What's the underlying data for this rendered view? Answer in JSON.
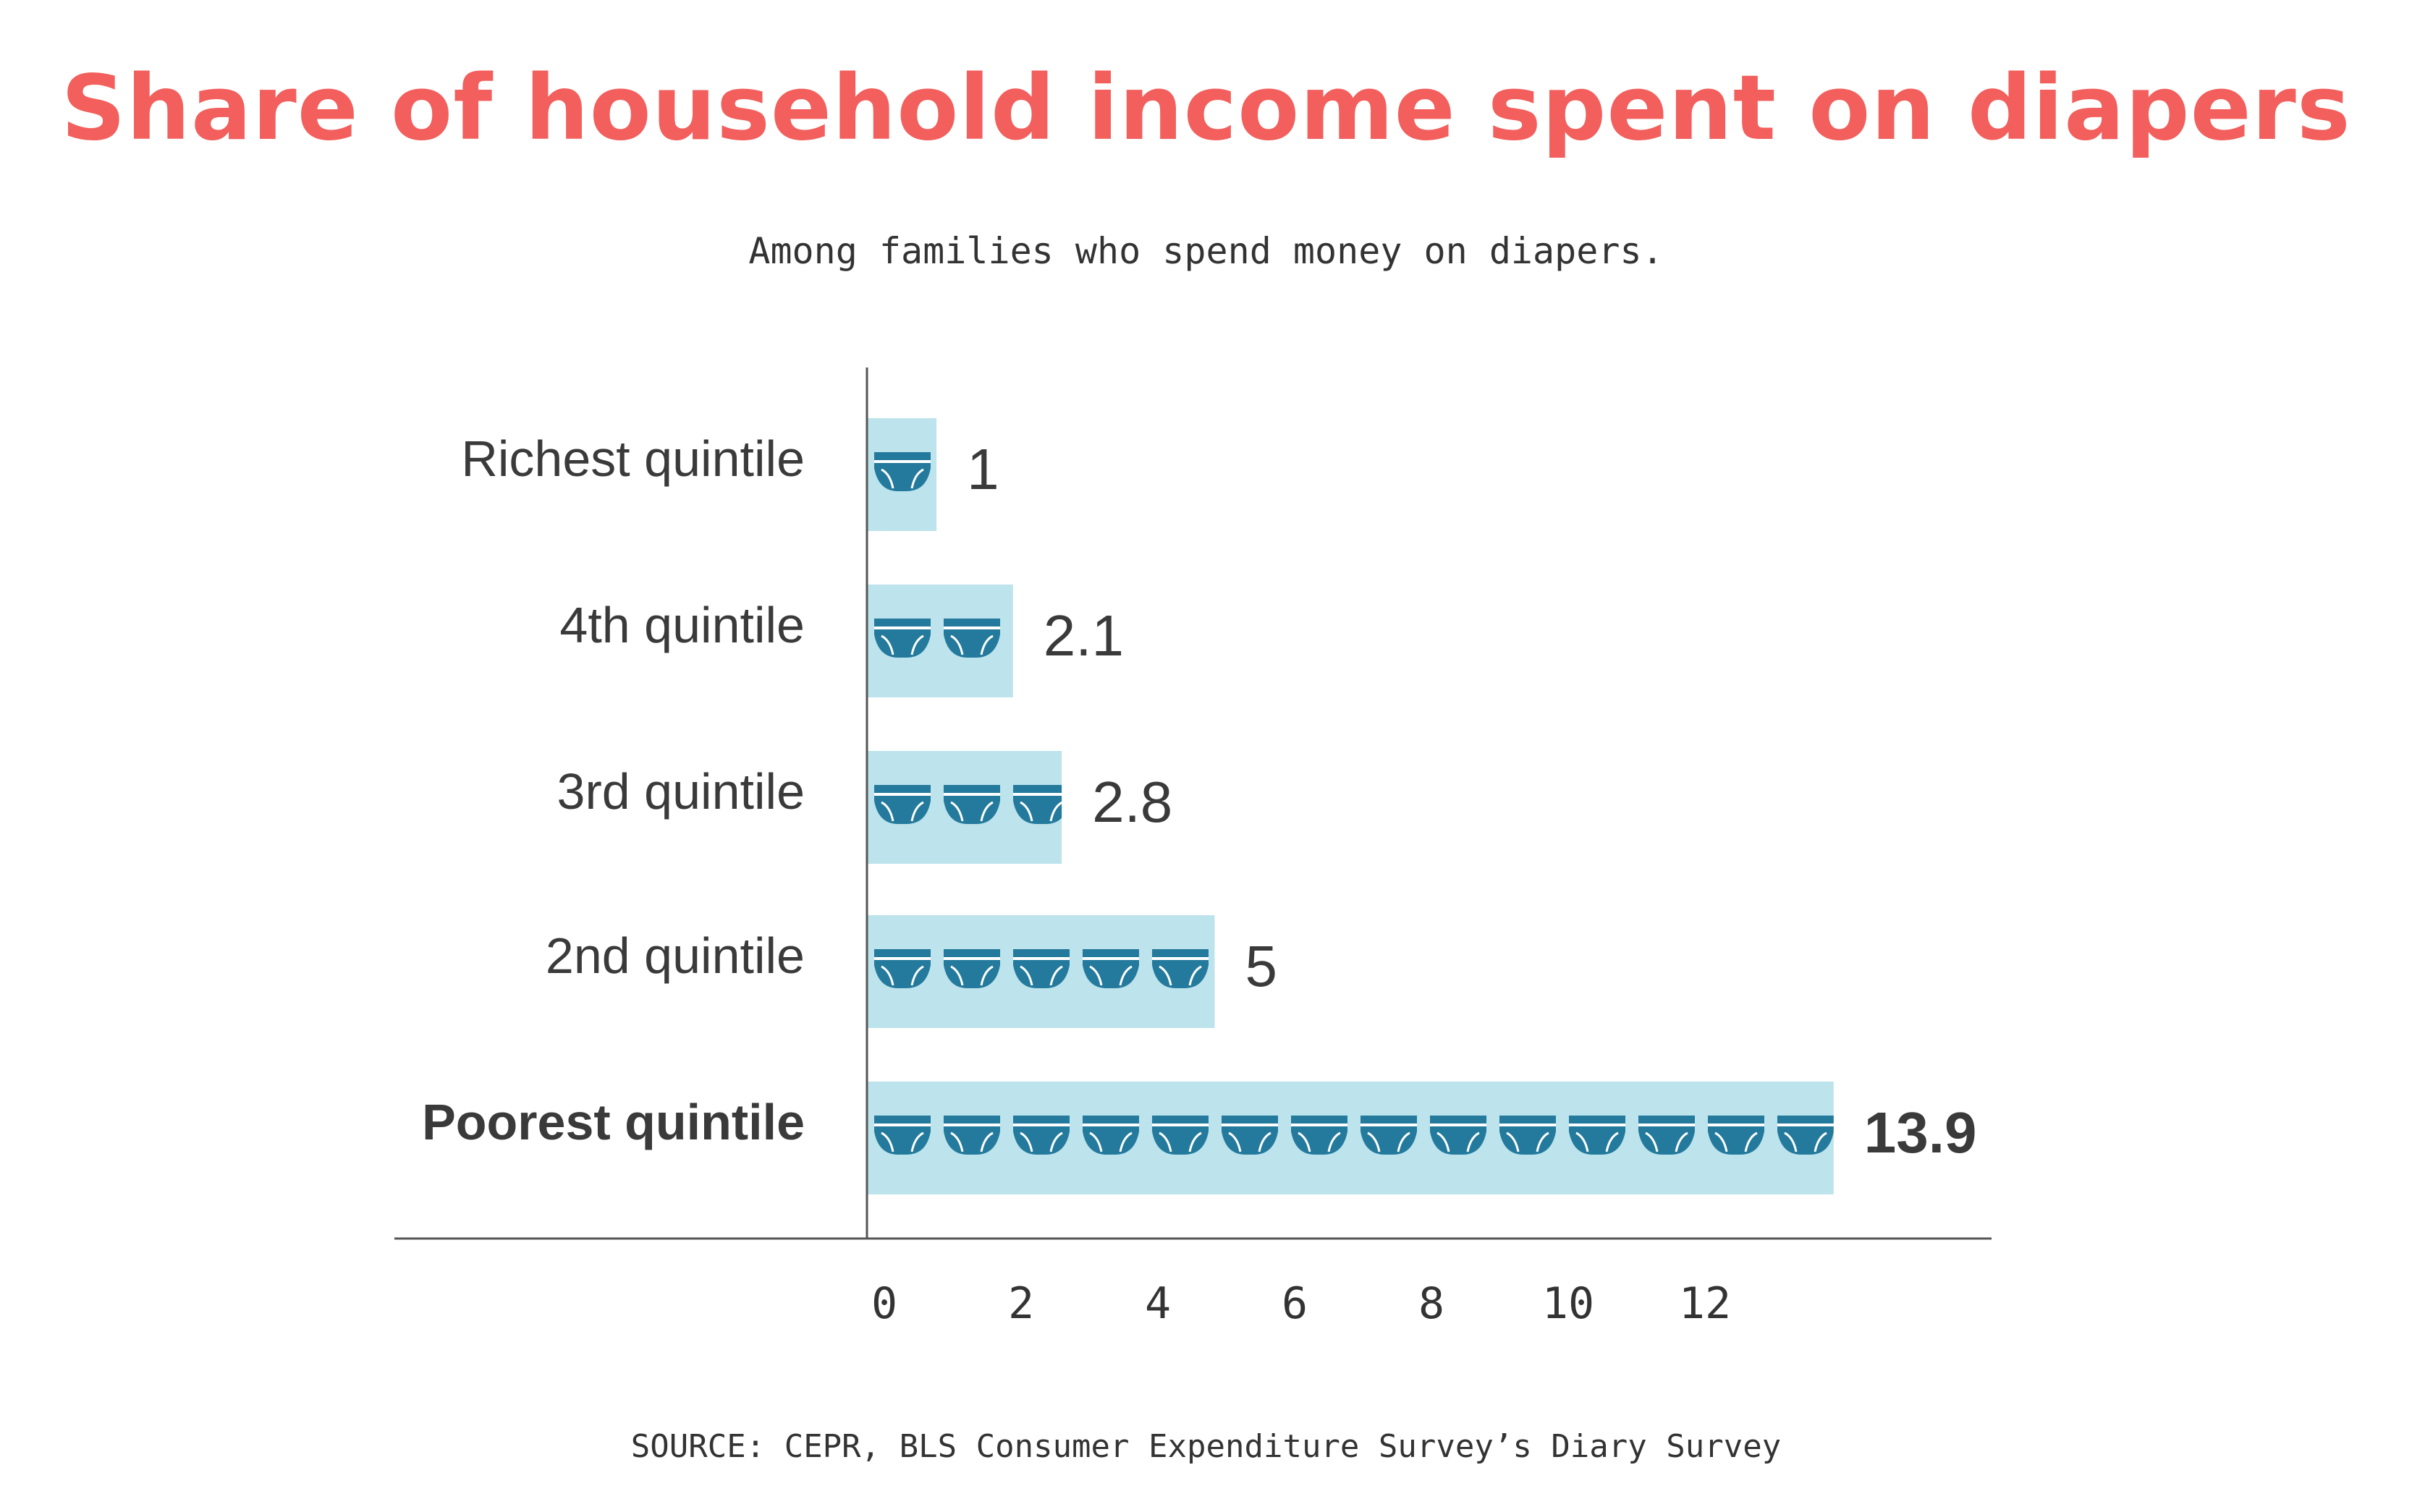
{
  "chart_data": {
    "type": "bar",
    "orientation": "horizontal",
    "title": "Share of household income spent on diapers",
    "subtitle": "Among families who spend money on diapers.",
    "source": "SOURCE: CEPR, BLS Consumer Expenditure Survey’s Diary Survey",
    "categories": [
      "Richest quintile",
      "4th quintile",
      "3rd quintile",
      "2nd quintile",
      "Poorest quintile"
    ],
    "values": [
      1,
      2.1,
      2.8,
      5,
      13.9
    ],
    "value_labels": [
      "1",
      "2.1",
      "2.8",
      "5",
      "13.9"
    ],
    "highlight_category": "Poorest quintile",
    "xticks": [
      0,
      2,
      4,
      6,
      8,
      10,
      12
    ],
    "xlim": [
      0,
      14
    ],
    "grid": false,
    "icon": "diaper-icon",
    "colors": {
      "title": "#f25f5c",
      "bar": "#bde3ec",
      "icon": "#237a9c",
      "text": "#3a3a3a",
      "axis": "#555555"
    }
  }
}
